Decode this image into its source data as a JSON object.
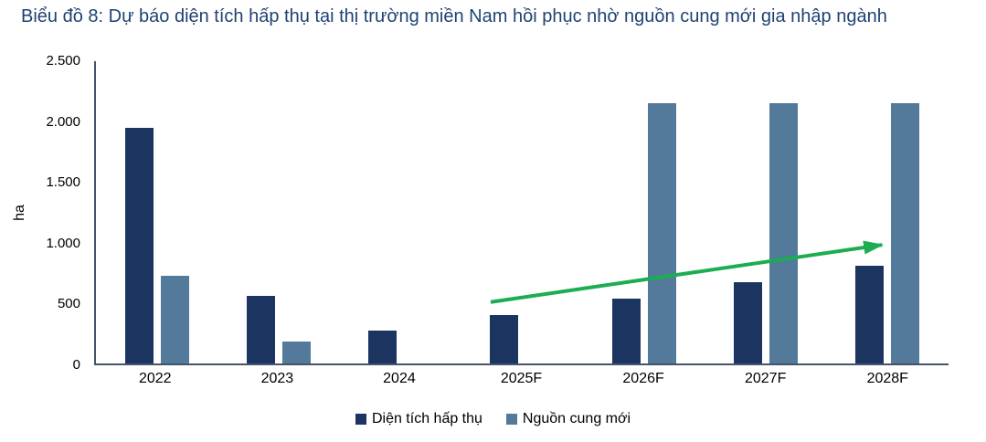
{
  "title": "Biểu đồ 8: Dự báo diện tích hấp thụ tại thị trường miền Nam hồi phục nhờ nguồn cung mới gia nhập ngành",
  "colors": {
    "title": "#1F4273",
    "axis_line": "#44546A",
    "absorption_bar": "#1B3560",
    "new_supply_bar": "#53799B",
    "trend_arrow": "#1CAD52",
    "tick_text": "#000000"
  },
  "chart_data": {
    "type": "bar",
    "title": "Biểu đồ 8: Dự báo diện tích hấp thụ tại thị trường miền Nam hồi phục nhờ nguồn cung mới gia nhập ngành",
    "xlabel": "",
    "ylabel": "ha",
    "ylim": [
      0,
      2500
    ],
    "grid": false,
    "legend_position": "bottom",
    "yticks": [
      {
        "v": 2500,
        "label": "2.500"
      },
      {
        "v": 2000,
        "label": "2.000"
      },
      {
        "v": 1500,
        "label": "1.500"
      },
      {
        "v": 1000,
        "label": "1.000"
      },
      {
        "v": 500,
        "label": "500"
      },
      {
        "v": 0,
        "label": "0"
      }
    ],
    "categories": [
      "2022",
      "2023",
      "2024",
      "2025F",
      "2026F",
      "2027F",
      "2028F"
    ],
    "series": [
      {
        "name": "Diện tích hấp thụ",
        "color": "#1B3560",
        "values": [
          1940,
          555,
          270,
          400,
          535,
          665,
          800
        ]
      },
      {
        "name": "Nguồn cung mới",
        "color": "#53799B",
        "values": [
          720,
          180,
          0,
          0,
          2140,
          2140,
          2140
        ]
      }
    ],
    "annotations": [
      {
        "type": "arrow",
        "color": "#1CAD52",
        "from": {
          "x_frac": 0.462,
          "value": 520
        },
        "to": {
          "x_frac": 0.92,
          "value": 990
        }
      }
    ]
  }
}
